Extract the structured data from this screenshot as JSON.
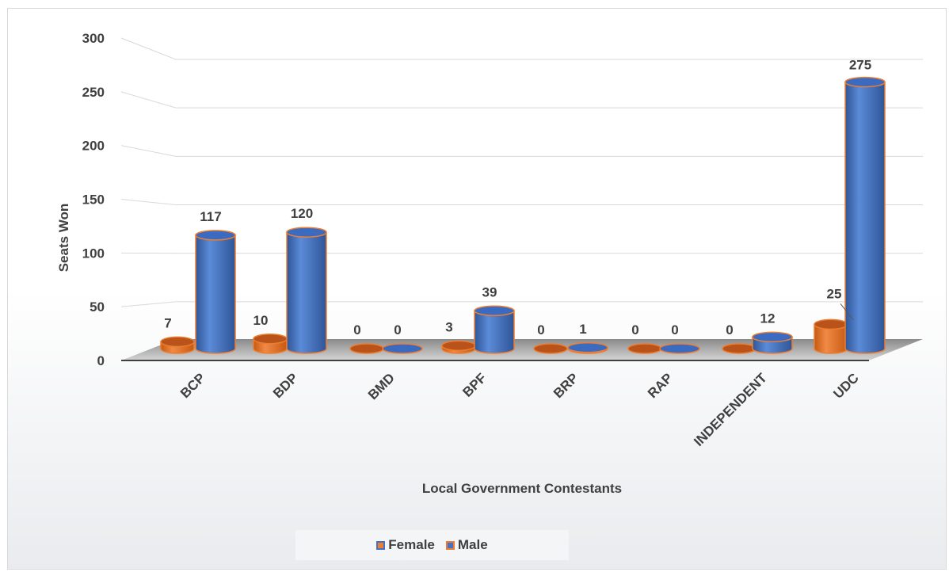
{
  "chart_data": {
    "type": "bar",
    "categories": [
      "BCP",
      "BDP",
      "BMD",
      "BPF",
      "BRP",
      "RAP",
      "INDEPENDENT",
      "UDC"
    ],
    "series": [
      {
        "name": "Female",
        "values": [
          7,
          10,
          0,
          3,
          0,
          0,
          0,
          25
        ],
        "color": "#ed7d31"
      },
      {
        "name": "Male",
        "values": [
          117,
          120,
          0,
          39,
          1,
          0,
          12,
          275
        ],
        "color": "#4472c4"
      }
    ],
    "xlabel": "Local Government Contestants",
    "ylabel": "Seats Won",
    "ylim": [
      0,
      300
    ],
    "yticks": [
      "0",
      "50",
      "100",
      "150",
      "200",
      "250",
      "300"
    ],
    "grid": true,
    "legend_position": "bottom",
    "style": "3d-cylinder",
    "edge_color": "#ed7d31"
  },
  "legend": {
    "items": [
      {
        "label": "Female",
        "fill": "#ed7d31",
        "border": "#4472c4"
      },
      {
        "label": "Male",
        "fill": "#4472c4",
        "border": "#ed7d31"
      }
    ]
  }
}
